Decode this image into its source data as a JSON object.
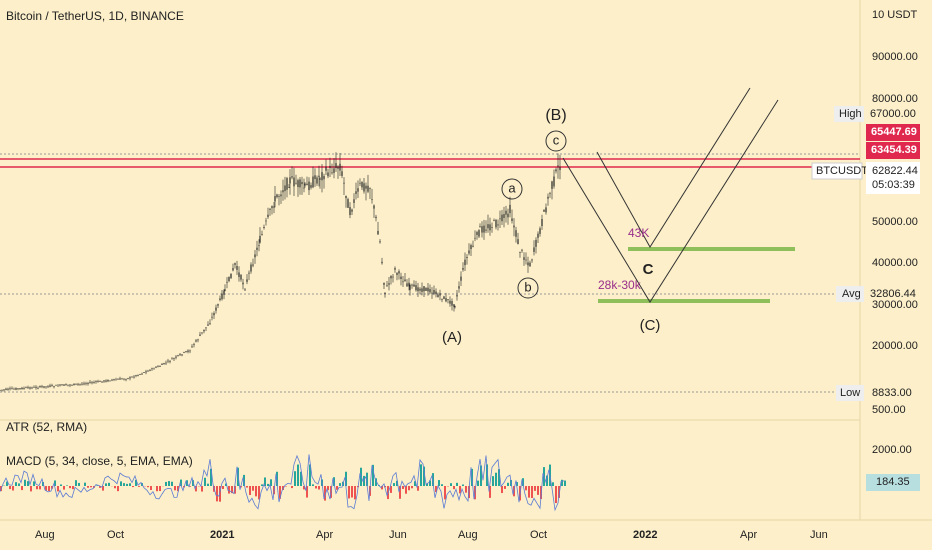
{
  "header": {
    "title": "Bitcoin / TetherUS, 1D, BINANCE"
  },
  "price_axis": {
    "ticks": [
      "10 USDT",
      "90000.00",
      "80000.00",
      "50000.00",
      "40000.00",
      "30000.00",
      "20000.00",
      "500.00"
    ],
    "high": {
      "tag": "High",
      "price": "67000.00"
    },
    "marks": [
      "65447.69",
      "63454.39"
    ],
    "symbol": {
      "tag": "BTCUSDT",
      "price": "62822.44",
      "countdown": "05:03:39"
    },
    "avg": {
      "tag": "Avg",
      "price": "32806.44"
    },
    "low": {
      "tag": "Low",
      "price": "8833.00"
    }
  },
  "indicators": {
    "atr": "ATR (52, RMA)",
    "macd": "MACD (5, 34, close, 5, EMA, EMA)",
    "tick": "2000.00",
    "value": "184.35"
  },
  "time_axis": [
    "Aug",
    "Oct",
    "2021",
    "Apr",
    "Jun",
    "Aug",
    "Oct",
    "2022",
    "Apr",
    "Jun"
  ],
  "annotations": [
    "(B)",
    "c",
    "a",
    "b",
    "(A)",
    "43K",
    "C",
    "28k-30k",
    "(C)"
  ]
}
